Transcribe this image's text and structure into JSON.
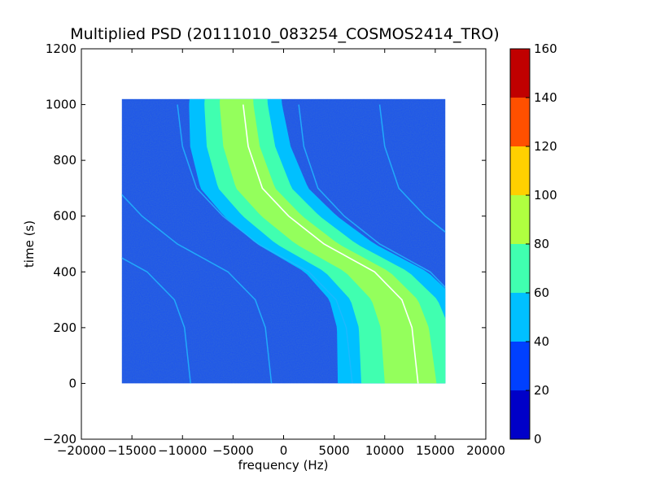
{
  "chart_data": {
    "type": "heatmap",
    "title": "Multiplied PSD (20111010_083254_COSMOS2414_TRO)",
    "xlabel": "frequency (Hz)",
    "ylabel": "time (s)",
    "xlim": [
      -20000,
      20000
    ],
    "ylim": [
      -200,
      1200
    ],
    "x_ticks": [
      -20000,
      -15000,
      -10000,
      -5000,
      0,
      5000,
      10000,
      15000,
      20000
    ],
    "x_tick_labels": [
      "−20000",
      "−15000",
      "−10000",
      "−5000",
      "0",
      "5000",
      "10000",
      "15000",
      "20000"
    ],
    "y_ticks": [
      -200,
      0,
      200,
      400,
      600,
      800,
      1000,
      1200
    ],
    "y_tick_labels": [
      "−200",
      "0",
      "200",
      "400",
      "600",
      "800",
      "1000",
      "1200"
    ],
    "data_extent": {
      "x": [
        -16000,
        16000
      ],
      "y": [
        0,
        1020
      ]
    },
    "colorbar": {
      "levels": [
        0,
        20,
        40,
        60,
        80,
        100,
        120,
        140,
        160
      ],
      "tick_labels": [
        "0",
        "20",
        "40",
        "60",
        "80",
        "100",
        "120",
        "140",
        "160"
      ],
      "colors": [
        "#0000c8",
        "#0040ff",
        "#00c0ff",
        "#40ffb0",
        "#b0ff40",
        "#ffd000",
        "#ff5000",
        "#c00000"
      ]
    },
    "background_color": "#1a50f0",
    "main_trace": {
      "description_points": [
        {
          "t": 1000,
          "f": -4500
        },
        {
          "t": 850,
          "f": -4000
        },
        {
          "t": 700,
          "f": -2600
        },
        {
          "t": 600,
          "f": 0
        },
        {
          "t": 500,
          "f": 3500
        },
        {
          "t": 400,
          "f": 8500
        },
        {
          "t": 300,
          "f": 11200
        },
        {
          "t": 200,
          "f": 12200
        },
        {
          "t": 0,
          "f": 12800
        }
      ]
    }
  }
}
